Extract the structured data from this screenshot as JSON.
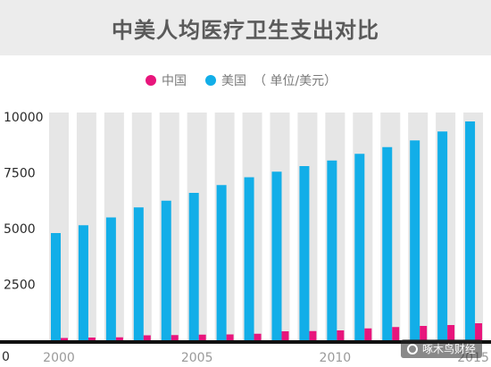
{
  "title": "中美人均医疗卫生支出对比",
  "legend": {
    "items": [
      {
        "label": "中国",
        "color": "#e8157c"
      },
      {
        "label": "美国",
        "color": "#12aee8"
      }
    ],
    "unit_note": "（ 单位/美元）"
  },
  "watermark": "啄木鸟财经",
  "chart_data": {
    "type": "bar",
    "categories": [
      "2000",
      "2001",
      "2002",
      "2003",
      "2004",
      "2005",
      "2006",
      "2007",
      "2008",
      "2009",
      "2010",
      "2011",
      "2012",
      "2013",
      "2014",
      "2015"
    ],
    "x_tick_labels": [
      "2000",
      "2005",
      "2010",
      "2015"
    ],
    "series": [
      {
        "name": "美国",
        "color": "#12aee8",
        "values": [
          4800,
          5150,
          5500,
          5950,
          6250,
          6600,
          6950,
          7300,
          7550,
          7800,
          8050,
          8350,
          8650,
          8950,
          9350,
          9800
        ]
      },
      {
        "name": "中国",
        "color": "#e8157c",
        "values": [
          100,
          120,
          130,
          220,
          230,
          250,
          260,
          290,
          400,
          410,
          440,
          530,
          590,
          640,
          680,
          760
        ]
      }
    ],
    "background_bar_color": "#e6e6e6",
    "y_tick_labels": [
      "0",
      "2500",
      "5000",
      "7500",
      "10000"
    ],
    "y_ticks": [
      0,
      2500,
      5000,
      7500,
      10000
    ],
    "ylim": [
      0,
      10200
    ],
    "grid": false
  }
}
